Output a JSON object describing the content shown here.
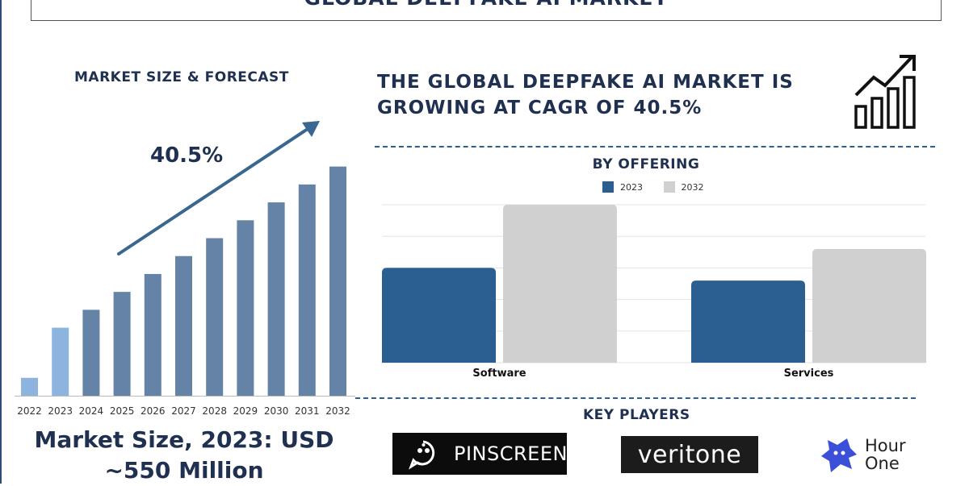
{
  "title": "GLOBAL DEEPFAKE AI MARKET",
  "left_heading": "MARKET SIZE & FORECAST",
  "cagr_label": "40.5%",
  "market_size_line1": "Market Size, 2023: USD",
  "market_size_line2": "~550 Million",
  "headline_line1": "THE GLOBAL DEEPFAKE AI MARKET IS",
  "headline_line2": "GROWING AT CAGR OF 40.5%",
  "offering_heading": "BY OFFERING",
  "players_heading": "KEY PLAYERS",
  "players": {
    "pinscreen": "PINSCREEN",
    "veritone": "veritone",
    "hourone_line1": "Hour",
    "hourone_line2": "One"
  },
  "icons": [
    "growth-chart-icon",
    "pinscreen-logo-icon",
    "hourone-logo-icon"
  ],
  "colors": {
    "title_text": "#1f3050",
    "bar_2022_2023": "#8db4de",
    "bar_forecast": "#6583a6",
    "offering_2023": "#2b5f91",
    "offering_2032": "#d0d0d0",
    "arrow": "#3a6790",
    "dash": "#2b5f91"
  },
  "chart_data": [
    {
      "type": "bar",
      "title": "MARKET SIZE & FORECAST",
      "categories": [
        "2022",
        "2023",
        "2024",
        "2025",
        "2026",
        "2027",
        "2028",
        "2029",
        "2030",
        "2031",
        "2032"
      ],
      "values": [
        1.0,
        3.8,
        4.8,
        5.8,
        6.8,
        7.8,
        8.8,
        9.8,
        10.8,
        11.8,
        12.8
      ],
      "annotation": "40.5%",
      "ylim": [
        0,
        14
      ],
      "grid": false
    },
    {
      "type": "bar",
      "title": "BY OFFERING",
      "categories": [
        "Software",
        "Services"
      ],
      "series": [
        {
          "name": "2023",
          "values": [
            3.0,
            2.6
          ]
        },
        {
          "name": "2032",
          "values": [
            5.0,
            3.6
          ]
        }
      ],
      "ylim": [
        0,
        5
      ],
      "grid": true,
      "legend": "top-center"
    }
  ]
}
